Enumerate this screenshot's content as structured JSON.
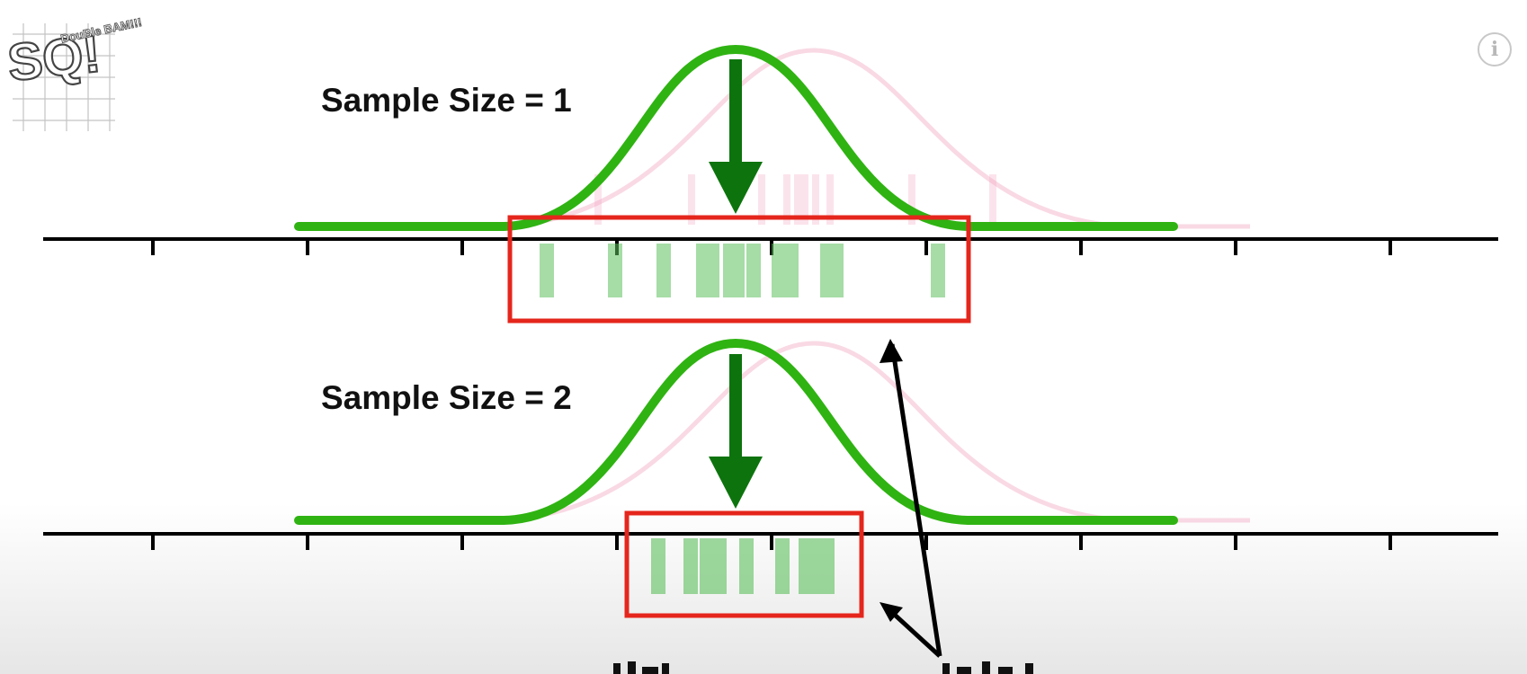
{
  "logo": {
    "main": "SQ!",
    "tagline": "DouBle BAM!!!"
  },
  "info_button": {
    "icon": "info-icon",
    "glyph": "i"
  },
  "panels": [
    {
      "label": "Sample Size = 1",
      "estimate_bars": 13
    },
    {
      "label": "Sample Size = 2",
      "estimate_bars": 9
    }
  ],
  "colors": {
    "curve": "#2fb312",
    "arrow": "#0d740d",
    "estimate_bar": "#5ec05e",
    "highlight_box": "#e5261c",
    "faded_curve": "#f7c9d9",
    "faded_bar": "#f3a6c3",
    "axis": "#000000",
    "pointer_arrow": "#000000"
  }
}
